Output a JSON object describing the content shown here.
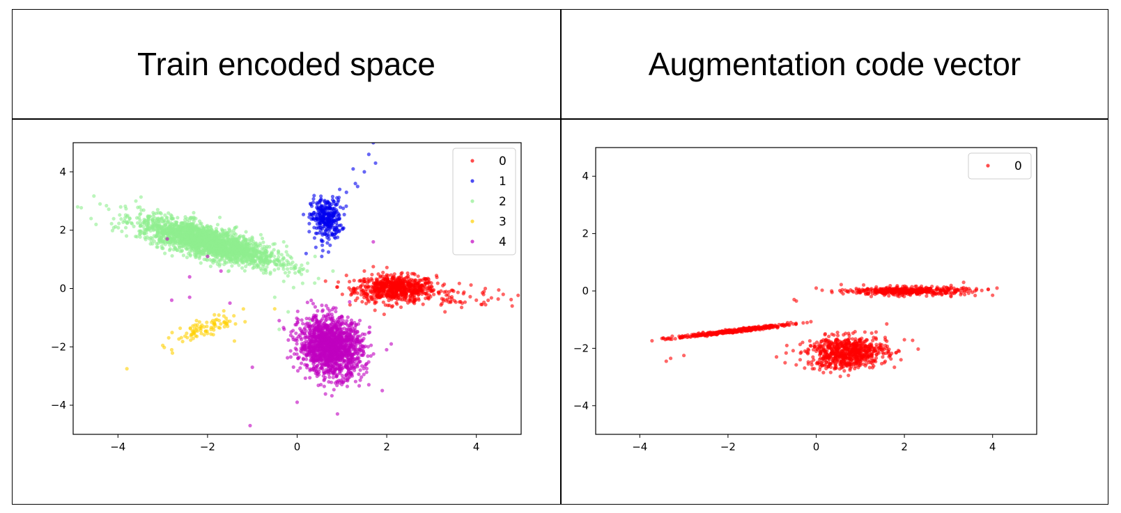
{
  "cells": {
    "left_title": "Train encoded space",
    "right_title": "Augmentation code vector"
  },
  "colors": {
    "0": "#ff0000",
    "1": "#0000ee",
    "2": "#90ee90",
    "3": "#ffd000",
    "4": "#c000c0"
  },
  "chart_data": [
    {
      "type": "scatter",
      "title": "Train encoded space",
      "xlabel": "",
      "ylabel": "",
      "xlim": [
        -5,
        5
      ],
      "ylim": [
        -5,
        5
      ],
      "xticks": [
        "−4",
        "−2",
        "0",
        "2",
        "4"
      ],
      "xtick_values": [
        -4,
        -2,
        0,
        2,
        4
      ],
      "yticks": [
        "4",
        "2",
        "0",
        "−2",
        "−4"
      ],
      "ytick_values": [
        4,
        2,
        0,
        -2,
        -4
      ],
      "grid": false,
      "legend": "top-right",
      "series": [
        {
          "name": "0",
          "color": "#ff0000",
          "clusters": [
            {
              "cx": 2.2,
              "cy": 0.0,
              "sx": 0.45,
              "sy": 0.22,
              "rho": 0.0,
              "n": 700
            },
            {
              "cx": 3.4,
              "cy": -0.3,
              "sx": 0.75,
              "sy": 0.18,
              "rho": 0.0,
              "n": 60
            }
          ],
          "extra": [
            [
              4.2,
              0.0
            ],
            [
              4.6,
              -0.2
            ],
            [
              4.8,
              -0.6
            ],
            [
              4.5,
              -0.05
            ],
            [
              3.3,
              -0.8
            ],
            [
              4.0,
              -0.4
            ],
            [
              1.1,
              0.45
            ],
            [
              1.5,
              0.6
            ],
            [
              1.7,
              0.75
            ],
            [
              1.9,
              -0.2
            ]
          ]
        },
        {
          "name": "1",
          "color": "#0000ee",
          "clusters": [
            {
              "cx": 0.65,
              "cy": 2.4,
              "sx": 0.17,
              "sy": 0.35,
              "rho": 0.0,
              "n": 300
            }
          ],
          "extra": [
            [
              1.1,
              3.3
            ],
            [
              1.3,
              3.6
            ],
            [
              1.5,
              4.0
            ],
            [
              1.6,
              4.6
            ],
            [
              1.7,
              5.0
            ],
            [
              1.75,
              4.3
            ],
            [
              1.25,
              4.1
            ],
            [
              0.2,
              1.2
            ],
            [
              0.55,
              1.1
            ],
            [
              0.7,
              1.25
            ],
            [
              1.35,
              3.5
            ],
            [
              0.95,
              3.4
            ]
          ]
        },
        {
          "name": "2",
          "color": "#90ee90",
          "clusters": [
            {
              "cx": -2.0,
              "cy": 1.6,
              "sx": 0.75,
              "sy": 0.4,
              "rho": -0.75,
              "n": 2200
            }
          ],
          "extra": [
            [
              -4.9,
              2.8
            ],
            [
              -4.6,
              2.4
            ],
            [
              -4.4,
              2.9
            ],
            [
              -3.6,
              3.0
            ],
            [
              -0.3,
              1.6
            ],
            [
              0.1,
              0.8
            ],
            [
              -0.6,
              0.5
            ],
            [
              -0.5,
              -0.3
            ],
            [
              -0.4,
              -1.4
            ],
            [
              0.3,
              -1.1
            ],
            [
              0.4,
              1.1
            ],
            [
              -0.1,
              0.9
            ],
            [
              0.8,
              0.6
            ],
            [
              -0.7,
              1.3
            ],
            [
              -0.2,
              -0.8
            ]
          ]
        },
        {
          "name": "3",
          "color": "#ffd000",
          "clusters": [
            {
              "cx": -2.0,
              "cy": -1.35,
              "sx": 0.35,
              "sy": 0.25,
              "rho": 0.75,
              "n": 85
            }
          ],
          "extra": [
            [
              -3.8,
              -2.75
            ],
            [
              -3.0,
              -1.95
            ],
            [
              -2.8,
              -2.1
            ],
            [
              -1.2,
              -0.7
            ],
            [
              -1.4,
              -1.8
            ]
          ]
        },
        {
          "name": "4",
          "color": "#c000c0",
          "clusters": [
            {
              "cx": 0.75,
              "cy": -2.0,
              "sx": 0.35,
              "sy": 0.5,
              "rho": -0.15,
              "n": 1500
            }
          ],
          "extra": [
            [
              -2.0,
              1.1
            ],
            [
              -2.9,
              1.7
            ],
            [
              -1.7,
              0.6
            ],
            [
              -2.4,
              0.4
            ],
            [
              -1.5,
              -0.5
            ],
            [
              -2.4,
              -0.3
            ],
            [
              -2.8,
              -0.4
            ],
            [
              -1.0,
              -2.7
            ],
            [
              -1.05,
              -4.7
            ],
            [
              0.0,
              -3.9
            ],
            [
              0.9,
              -4.3
            ],
            [
              1.9,
              -3.5
            ],
            [
              2.1,
              -1.9
            ],
            [
              1.6,
              -3.3
            ],
            [
              1.7,
              1.6
            ],
            [
              -0.4,
              -1.1
            ]
          ]
        }
      ]
    },
    {
      "type": "scatter",
      "title": "Augmentation code vector",
      "xlabel": "",
      "ylabel": "",
      "xlim": [
        -5,
        5
      ],
      "ylim": [
        -5,
        5
      ],
      "xticks": [
        "−4",
        "−2",
        "0",
        "2",
        "4"
      ],
      "xtick_values": [
        -4,
        -2,
        0,
        2,
        4
      ],
      "yticks": [
        "4",
        "2",
        "0",
        "−2",
        "−4"
      ],
      "ytick_values": [
        4,
        2,
        0,
        -2,
        -4
      ],
      "grid": false,
      "legend": "top-right",
      "series": [
        {
          "name": "0",
          "color": "#ff0000",
          "clusters": [
            {
              "cx": 0.7,
              "cy": -2.15,
              "sx": 0.45,
              "sy": 0.28,
              "rho": 0.1,
              "n": 700
            },
            {
              "cx": 2.1,
              "cy": 0.0,
              "sx": 0.65,
              "sy": 0.07,
              "rho": 0.0,
              "n": 450
            },
            {
              "cx": -1.9,
              "cy": -1.4,
              "sx": 0.65,
              "sy": 0.12,
              "rho": 0.97,
              "n": 380
            }
          ],
          "extra": [
            [
              -3.4,
              -2.45
            ],
            [
              -3.3,
              -2.35
            ],
            [
              -3.0,
              -2.25
            ],
            [
              -0.45,
              -0.35
            ],
            [
              -0.5,
              -0.3
            ],
            [
              0.0,
              0.1
            ],
            [
              0.35,
              0.0
            ],
            [
              0.7,
              -0.02
            ],
            [
              3.6,
              0.0
            ],
            [
              3.9,
              0.05
            ],
            [
              4.1,
              0.1
            ],
            [
              4.0,
              -0.15
            ],
            [
              -0.9,
              -2.3
            ],
            [
              1.6,
              -1.75
            ],
            [
              2.0,
              -1.7
            ],
            [
              1.6,
              -1.15
            ],
            [
              0.0,
              -2.1
            ]
          ]
        }
      ]
    }
  ]
}
